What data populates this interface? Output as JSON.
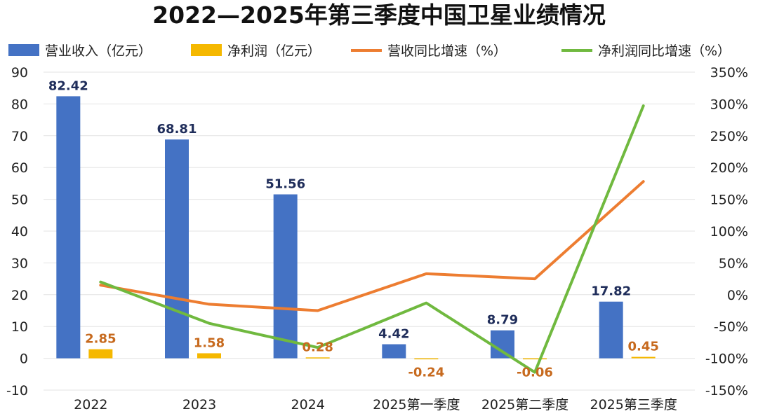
{
  "chart_data": {
    "type": "bar",
    "title": "2022—2025年第三季度中国卫星业绩情况",
    "categories": [
      "2022",
      "2023",
      "2024",
      "2025第一季度",
      "2025第二季度",
      "2025第三季度"
    ],
    "series": [
      {
        "name": "营业收入（亿元）",
        "kind": "bar",
        "axis": "left",
        "color": "#4472c4",
        "values": [
          82.42,
          68.81,
          51.56,
          4.42,
          8.79,
          17.82
        ],
        "labels": [
          "82.42",
          "68.81",
          "51.56",
          "4.42",
          "8.79",
          "17.82"
        ]
      },
      {
        "name": "净利润（亿元）",
        "kind": "bar",
        "axis": "left",
        "color": "#f5b800",
        "values": [
          2.85,
          1.58,
          0.28,
          -0.24,
          -0.06,
          0.45
        ],
        "labels": [
          "2.85",
          "1.58",
          "0.28",
          "-0.24",
          "-0.06",
          "0.45"
        ]
      },
      {
        "name": "营收同比增速（%）",
        "kind": "line",
        "axis": "right",
        "color": "#ed7d31",
        "values": [
          15,
          -15,
          -25,
          33,
          25,
          178
        ]
      },
      {
        "name": "净利润同比增速（%）",
        "kind": "line",
        "axis": "right",
        "color": "#70b93f",
        "values": [
          20,
          -45,
          -83,
          -13,
          -122,
          297
        ]
      }
    ],
    "y_left": {
      "min": -10,
      "max": 90,
      "step": 10,
      "ticks": [
        "-10",
        "0",
        "10",
        "20",
        "30",
        "40",
        "50",
        "60",
        "70",
        "80",
        "90"
      ]
    },
    "y_right": {
      "min": -150,
      "max": 350,
      "step": 50,
      "ticks": [
        "-150%",
        "-100%",
        "-50%",
        "0%",
        "50%",
        "100%",
        "150%",
        "200%",
        "250%",
        "300%",
        "350%"
      ]
    },
    "legend": "top",
    "grid": true
  }
}
